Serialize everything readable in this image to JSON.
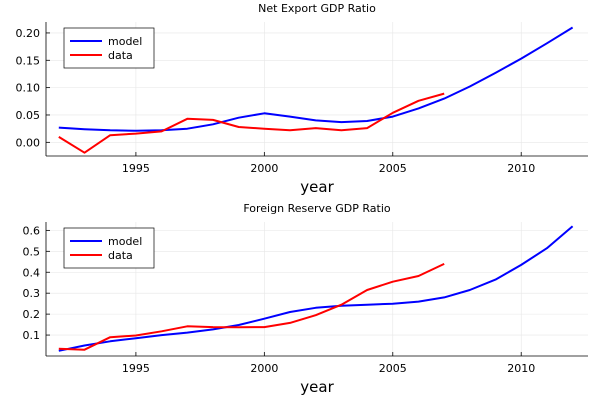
{
  "chart_data": [
    {
      "type": "line",
      "title": "Net Export GDP Ratio",
      "xlabel": "year",
      "ylabel": "",
      "xlim": [
        1991.5,
        2012.6
      ],
      "ylim": [
        -0.025,
        0.22
      ],
      "xticks": [
        1995,
        2000,
        2005,
        2010
      ],
      "yticks": [
        0.0,
        0.05,
        0.1,
        0.15,
        0.2
      ],
      "ytick_labels": [
        "0.00",
        "0.05",
        "0.10",
        "0.15",
        "0.20"
      ],
      "grid": true,
      "legend_position": "top-left",
      "series": [
        {
          "name": "model",
          "color": "#0000ff",
          "x": [
            1992,
            1993,
            1994,
            1995,
            1996,
            1997,
            1998,
            1999,
            2000,
            2001,
            2002,
            2003,
            2004,
            2005,
            2006,
            2007,
            2008,
            2009,
            2010,
            2011,
            2012
          ],
          "values": [
            0.027,
            0.024,
            0.022,
            0.021,
            0.022,
            0.025,
            0.033,
            0.045,
            0.053,
            0.047,
            0.04,
            0.037,
            0.039,
            0.047,
            0.062,
            0.08,
            0.102,
            0.127,
            0.153,
            0.181,
            0.21
          ]
        },
        {
          "name": "data",
          "color": "#ff0000",
          "x": [
            1992,
            1993,
            1994,
            1995,
            1996,
            1997,
            1998,
            1999,
            2000,
            2001,
            2002,
            2003,
            2004,
            2005,
            2006,
            2007
          ],
          "values": [
            0.01,
            -0.019,
            0.013,
            0.016,
            0.02,
            0.043,
            0.041,
            0.028,
            0.025,
            0.022,
            0.026,
            0.022,
            0.026,
            0.054,
            0.076,
            0.089
          ]
        }
      ]
    },
    {
      "type": "line",
      "title": "Foreign Reserve GDP Ratio",
      "xlabel": "year",
      "ylabel": "",
      "xlim": [
        1991.5,
        2012.6
      ],
      "ylim": [
        0.0,
        0.64
      ],
      "xticks": [
        1995,
        2000,
        2005,
        2010
      ],
      "yticks": [
        0.1,
        0.2,
        0.3,
        0.4,
        0.5,
        0.6
      ],
      "ytick_labels": [
        "0.1",
        "0.2",
        "0.3",
        "0.4",
        "0.5",
        "0.6"
      ],
      "grid": true,
      "legend_position": "top-left",
      "series": [
        {
          "name": "model",
          "color": "#0000ff",
          "x": [
            1992,
            1993,
            1994,
            1995,
            1996,
            1997,
            1998,
            1999,
            2000,
            2001,
            2002,
            2003,
            2004,
            2005,
            2006,
            2007,
            2008,
            2009,
            2010,
            2011,
            2012
          ],
          "values": [
            0.025,
            0.05,
            0.07,
            0.085,
            0.1,
            0.112,
            0.127,
            0.148,
            0.178,
            0.21,
            0.23,
            0.24,
            0.245,
            0.25,
            0.26,
            0.28,
            0.315,
            0.365,
            0.435,
            0.515,
            0.62
          ]
        },
        {
          "name": "data",
          "color": "#ff0000",
          "x": [
            1992,
            1993,
            1994,
            1995,
            1996,
            1997,
            1998,
            1999,
            2000,
            2001,
            2002,
            2003,
            2004,
            2005,
            2006,
            2007
          ],
          "values": [
            0.035,
            0.03,
            0.09,
            0.098,
            0.118,
            0.142,
            0.138,
            0.137,
            0.138,
            0.158,
            0.195,
            0.245,
            0.315,
            0.355,
            0.382,
            0.44
          ]
        }
      ]
    }
  ]
}
